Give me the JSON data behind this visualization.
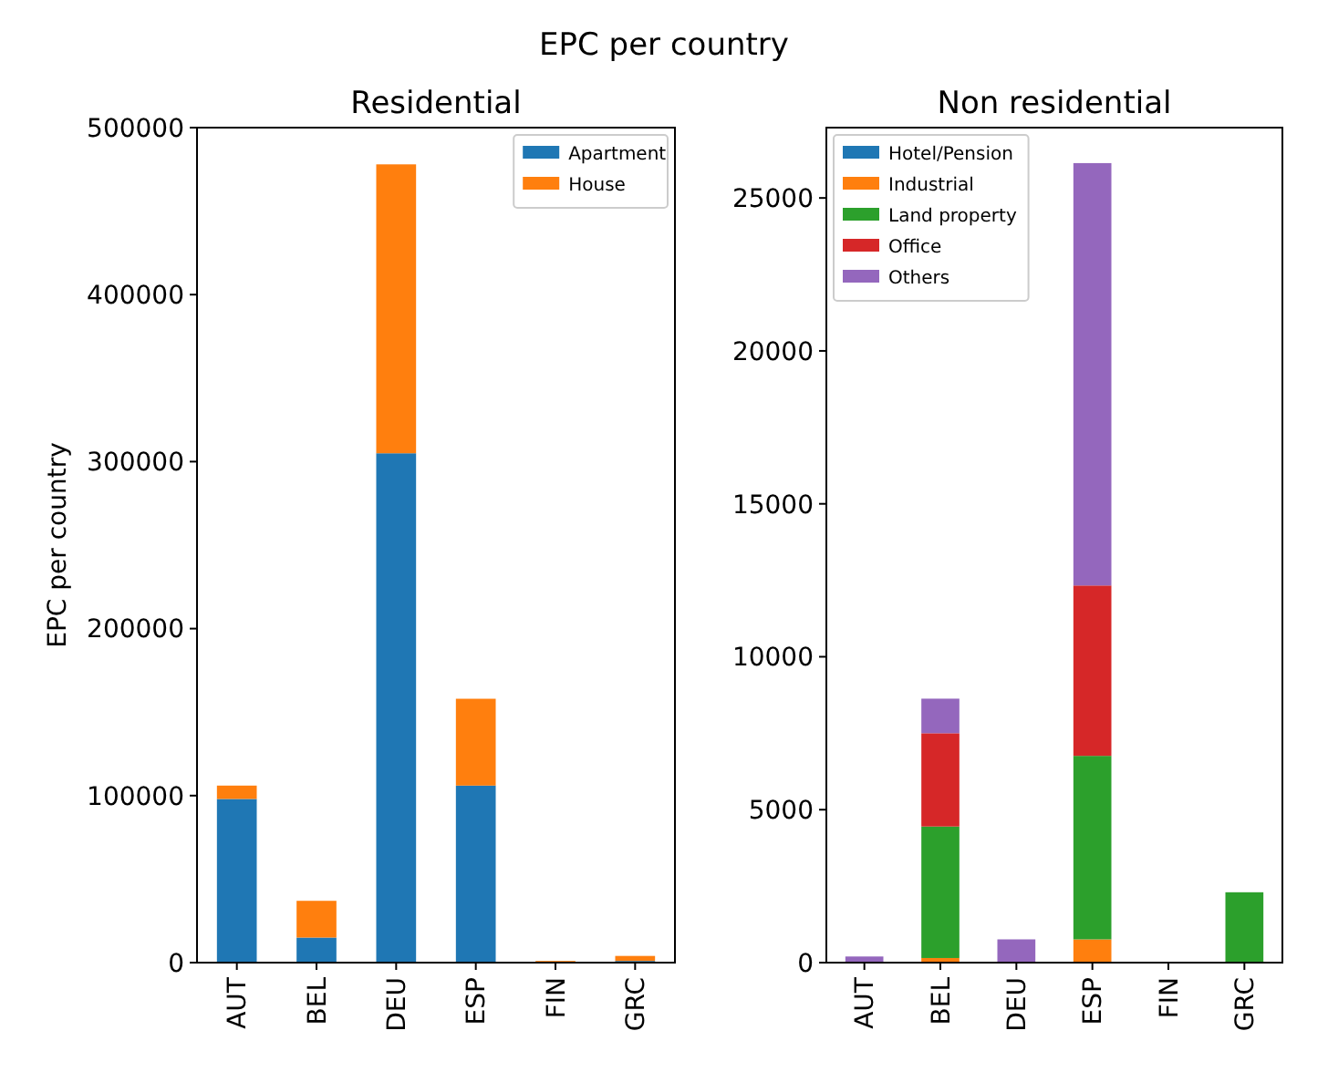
{
  "chart_data": [
    {
      "type": "bar",
      "title": "Residential",
      "ylabel": "EPC per country",
      "annotations": [
        "EPC per country"
      ],
      "stacked": true,
      "categories": [
        "AUT",
        "BEL",
        "DEU",
        "ESP",
        "FIN",
        "GRC"
      ],
      "ylim": [
        0,
        500000
      ],
      "yticks": [
        0,
        100000,
        200000,
        300000,
        400000,
        500000
      ],
      "legend": "top right",
      "grid": false,
      "series": [
        {
          "name": "Apartment",
          "color": "#1f77b4",
          "values": [
            98000,
            15000,
            305000,
            106000,
            0,
            1000
          ]
        },
        {
          "name": "House",
          "color": "#ff7f0e",
          "values": [
            8000,
            22000,
            173000,
            52000,
            1000,
            3000
          ]
        }
      ]
    },
    {
      "type": "bar",
      "title": "Non residential",
      "stacked": true,
      "categories": [
        "AUT",
        "BEL",
        "DEU",
        "ESP",
        "FIN",
        "GRC"
      ],
      "ylim": [
        0,
        27300
      ],
      "yticks": [
        0,
        5000,
        10000,
        15000,
        20000,
        25000
      ],
      "legend": "top left",
      "grid": false,
      "series": [
        {
          "name": "Hotel/Pension",
          "color": "#1f77b4",
          "values": [
            0,
            0,
            0,
            0,
            0,
            0
          ]
        },
        {
          "name": "Industrial",
          "color": "#ff7f0e",
          "values": [
            0,
            150,
            0,
            760,
            0,
            0
          ]
        },
        {
          "name": "Land property",
          "color": "#2ca02c",
          "values": [
            0,
            4300,
            0,
            6000,
            0,
            2300
          ]
        },
        {
          "name": "Office",
          "color": "#d62728",
          "values": [
            0,
            3050,
            0,
            5570,
            0,
            0
          ]
        },
        {
          "name": "Others",
          "color": "#9467bd",
          "values": [
            200,
            1130,
            760,
            13810,
            0,
            0
          ]
        }
      ]
    }
  ]
}
